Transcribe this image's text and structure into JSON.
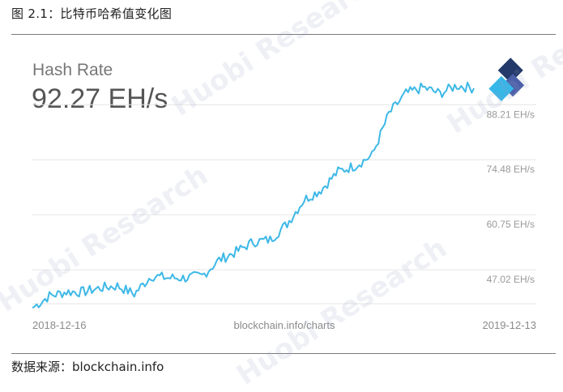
{
  "figure_title": "图 2.1：比特币哈希值变化图",
  "source_note": "数据来源：blockchain.info",
  "watermark_text": "Huobi Research",
  "colors": {
    "line": "#3db8e6",
    "grid": "#e6e6e6",
    "text_muted": "#999999"
  },
  "chart_data": {
    "type": "line",
    "metric_name": "Hash Rate",
    "current_value": "92.27 EH/s",
    "x_start_label": "2018-12-16",
    "x_end_label": "2019-12-13",
    "x_center_label": "blockchain.info/charts",
    "y_ticks": [
      "88.21 EH/s",
      "74.48 EH/s",
      "60.75 EH/s",
      "47.02 EH/s"
    ],
    "y_tick_values": [
      88.21,
      74.48,
      60.75,
      47.02
    ],
    "ylim": [
      33.3,
      101.2
    ],
    "grid": true,
    "x": [
      "2018-12-16",
      "2018-12-30",
      "2019-01-13",
      "2019-01-27",
      "2019-02-10",
      "2019-02-24",
      "2019-03-10",
      "2019-03-24",
      "2019-04-07",
      "2019-04-21",
      "2019-05-05",
      "2019-05-19",
      "2019-06-02",
      "2019-06-16",
      "2019-06-30",
      "2019-07-14",
      "2019-07-28",
      "2019-08-11",
      "2019-08-25",
      "2019-09-08",
      "2019-09-22",
      "2019-10-06",
      "2019-10-20",
      "2019-11-03",
      "2019-11-17",
      "2019-12-01",
      "2019-12-13"
    ],
    "values": [
      37.5,
      40.5,
      41.5,
      41.5,
      42.5,
      43.0,
      41.0,
      45.5,
      45.0,
      45.0,
      45.5,
      49.5,
      51.5,
      54.0,
      54.5,
      58.5,
      64.5,
      67.0,
      71.5,
      73.0,
      75.5,
      86.0,
      91.0,
      92.5,
      91.0,
      93.0,
      92.3
    ]
  }
}
